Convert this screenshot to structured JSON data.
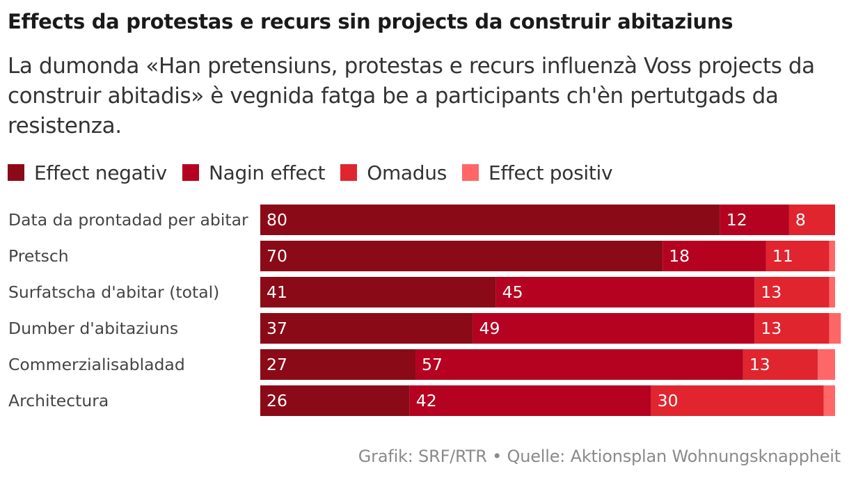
{
  "title": "Effects da protestas e recurs sin projects da construir abitaziuns",
  "subtitle": "La dumonda «Han pretensiuns, protestas e recurs influenzà Voss projects da construir abitadis» è vegnida fatga be a participants ch'èn pertutgads da resistenza.",
  "source": "Grafik: SRF/RTR • Quelle: Aktionsplan Wohnungsknappheit",
  "legend": [
    {
      "label": "Effect negativ",
      "color": "#8b0a17"
    },
    {
      "label": "Nagin effect",
      "color": "#b50221"
    },
    {
      "label": "Omadus",
      "color": "#e0252f"
    },
    {
      "label": "Effect positiv",
      "color": "#ff6767"
    }
  ],
  "chart_data": {
    "type": "bar",
    "orientation": "horizontal",
    "stacked": true,
    "xlim": [
      0,
      100
    ],
    "categories": [
      "Data da prontadad per abitar",
      "Pretsch",
      "Surfatscha d'abitar (total)",
      "Dumber d'abitaziuns",
      "Commerzialisabladad",
      "Architectura"
    ],
    "series": [
      {
        "name": "Effect negativ",
        "color": "#8b0a17",
        "values": [
          80,
          70,
          41,
          37,
          27,
          26
        ]
      },
      {
        "name": "Nagin effect",
        "color": "#b50221",
        "values": [
          12,
          18,
          45,
          49,
          57,
          42
        ]
      },
      {
        "name": "Omadus",
        "color": "#e0252f",
        "values": [
          8,
          11,
          13,
          13,
          13,
          30
        ]
      },
      {
        "name": "Effect positiv",
        "color": "#ff6767",
        "values": [
          0,
          1,
          1,
          2,
          3,
          2
        ]
      }
    ],
    "data_labels": [
      [
        "80",
        "12",
        "8",
        ""
      ],
      [
        "70",
        "18",
        "11",
        ""
      ],
      [
        "41",
        "45",
        "13",
        ""
      ],
      [
        "37",
        "49",
        "13",
        ""
      ],
      [
        "27",
        "57",
        "13",
        ""
      ],
      [
        "26",
        "42",
        "30",
        ""
      ]
    ]
  }
}
